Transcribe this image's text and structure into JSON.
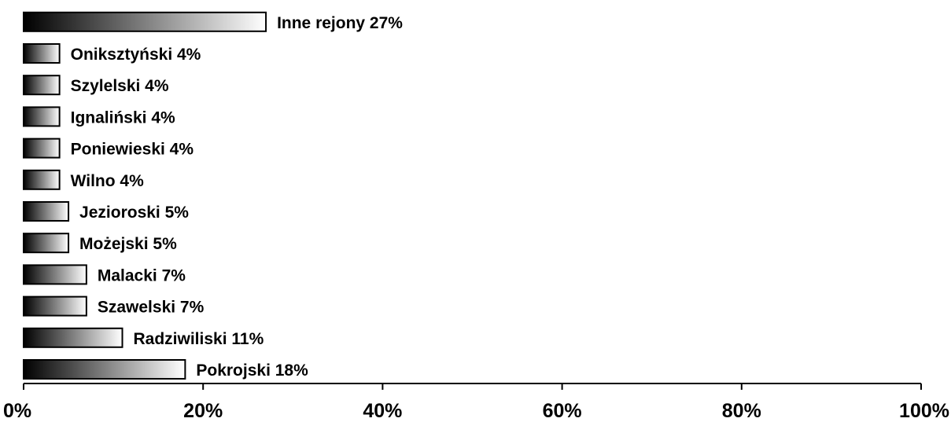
{
  "chart_data": {
    "type": "bar",
    "orientation": "horizontal",
    "categories": [
      "Pokrojski",
      "Radziwiliski",
      "Szawelski",
      "Malacki",
      "Możejski",
      "Jezioroski",
      "Wilno",
      "Poniewieski",
      "Ignaliński",
      "Szylelski",
      "Oniksztyński",
      "Inne rejony"
    ],
    "values": [
      18,
      11,
      7,
      7,
      5,
      5,
      4,
      4,
      4,
      4,
      4,
      27
    ],
    "data_labels": [
      "Pokrojski 18%",
      "Radziwiliski 11%",
      "Szawelski 7%",
      "Malacki 7%",
      "Możejski 5%",
      "Jezioroski 5%",
      "Wilno 4%",
      "Poniewieski 4%",
      "Ignaliński 4%",
      "Szylelski 4%",
      "Oniksztyński 4%",
      "Inne rejony 27%"
    ],
    "xlim": [
      0,
      100
    ],
    "x_ticks": [
      0,
      20,
      40,
      60,
      80,
      100
    ],
    "x_tick_labels": [
      "0%",
      "20%",
      "40%",
      "60%",
      "80%",
      "100%"
    ],
    "grid": false,
    "legend": "none",
    "title": "",
    "xlabel": "",
    "ylabel": "",
    "colors": {
      "bar_start": "#000000",
      "bar_end": "#ffffff",
      "bar_stroke": "#000000",
      "axis": "#000000",
      "text": "#000000"
    }
  }
}
